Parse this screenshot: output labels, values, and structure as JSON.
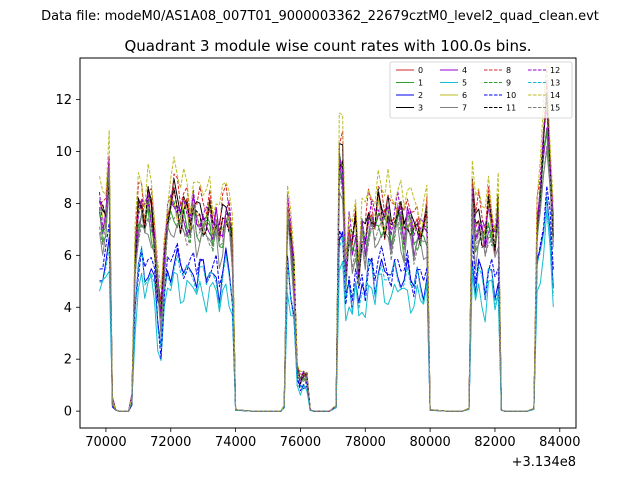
{
  "chart_data": {
    "type": "line",
    "suptitle": "Data file: modeM0/AS1A08_007T01_9000003362_22679cztM0_level2_quad_clean.evt",
    "title": "Quadrant 3 module wise count rates with 100.0s bins.",
    "xlabel": "",
    "ylabel": "",
    "x_offset_label": "+3.134e8",
    "xlim": [
      69200,
      84500
    ],
    "ylim": [
      -0.65,
      13.6
    ],
    "xticks": [
      70000,
      72000,
      74000,
      76000,
      78000,
      80000,
      82000,
      84000
    ],
    "xtick_labels": [
      "70000",
      "72000",
      "74000",
      "76000",
      "78000",
      "80000",
      "82000",
      "84000"
    ],
    "yticks": [
      0,
      2,
      4,
      6,
      8,
      10,
      12
    ],
    "ytick_labels": [
      "0",
      "2",
      "4",
      "6",
      "8",
      "10",
      "12"
    ],
    "legend_position": "top-right",
    "legend_columns": 4,
    "series": [
      {
        "name": "0",
        "color": "#d62728",
        "dash": "solid",
        "scale": 1.0,
        "cap": 7.8
      },
      {
        "name": "1",
        "color": "#2ca02c",
        "dash": "solid",
        "scale": 0.95,
        "cap": 7.3
      },
      {
        "name": "2",
        "color": "#0000ee",
        "dash": "solid",
        "scale": 0.72,
        "cap": 5.6
      },
      {
        "name": "3",
        "color": "#000000",
        "dash": "solid",
        "scale": 1.03,
        "cap": 8.0
      },
      {
        "name": "4",
        "color": "#9400d3",
        "dash": "solid",
        "scale": 0.98,
        "cap": 7.6
      },
      {
        "name": "5",
        "color": "#17becf",
        "dash": "solid",
        "scale": 0.62,
        "cap": 5.0
      },
      {
        "name": "6",
        "color": "#bcbd22",
        "dash": "solid",
        "scale": 1.0,
        "cap": 7.4
      },
      {
        "name": "7",
        "color": "#7f7f7f",
        "dash": "solid",
        "scale": 0.9,
        "cap": 7.0
      },
      {
        "name": "8",
        "color": "#d62728",
        "dash": "dashed",
        "scale": 1.08,
        "cap": 8.4
      },
      {
        "name": "9",
        "color": "#2ca02c",
        "dash": "dashed",
        "scale": 0.97,
        "cap": 7.5
      },
      {
        "name": "10",
        "color": "#0000ee",
        "dash": "dashed",
        "scale": 0.75,
        "cap": 5.8
      },
      {
        "name": "11",
        "color": "#000000",
        "dash": "dashed",
        "scale": 1.0,
        "cap": 7.7
      },
      {
        "name": "12",
        "color": "#9400d3",
        "dash": "dashed",
        "scale": 1.02,
        "cap": 7.9
      },
      {
        "name": "13",
        "color": "#17becf",
        "dash": "dashed",
        "scale": 0.7,
        "cap": 5.4
      },
      {
        "name": "14",
        "color": "#bcbd22",
        "dash": "dashed",
        "scale": 1.15,
        "cap": 9.0
      },
      {
        "name": "15",
        "color": "#7f7f7f",
        "dash": "dashed",
        "scale": 0.93,
        "cap": 7.2
      }
    ],
    "base_profile": {
      "x": [
        69800,
        69900,
        70000,
        70100,
        70200,
        70300,
        70400,
        70500,
        70600,
        70700,
        70800,
        70900,
        71000,
        71100,
        71200,
        71300,
        71400,
        71500,
        71600,
        71700,
        71800,
        71900,
        72000,
        72100,
        72200,
        72300,
        72400,
        72500,
        72600,
        72700,
        72800,
        72900,
        73000,
        73100,
        73200,
        73300,
        73400,
        73500,
        73600,
        73700,
        73800,
        73900,
        74000,
        74500,
        75000,
        75400,
        75500,
        75600,
        75700,
        75800,
        75900,
        76000,
        76100,
        76200,
        76300,
        76400,
        76500,
        76900,
        77100,
        77200,
        77300,
        77400,
        77500,
        77600,
        77700,
        77800,
        77900,
        78000,
        78100,
        78200,
        78300,
        78400,
        78500,
        78600,
        78700,
        78800,
        78900,
        79000,
        79100,
        79200,
        79300,
        79400,
        79500,
        79600,
        79700,
        79800,
        79900,
        80000,
        80500,
        81000,
        81100,
        81200,
        81300,
        81400,
        81500,
        81600,
        81700,
        81800,
        81900,
        82000,
        82100,
        82200,
        82300,
        82400,
        82500,
        82600,
        83000,
        83100,
        83200,
        83300,
        83400,
        83500,
        83600,
        83700,
        83800
      ],
      "y": [
        7.8,
        7.3,
        7.6,
        9.4,
        0.4,
        0.05,
        0.0,
        0.0,
        0.0,
        0.0,
        0.5,
        5.8,
        7.6,
        8.0,
        7.2,
        8.1,
        7.6,
        6.6,
        4.8,
        3.6,
        5.8,
        7.4,
        7.8,
        8.2,
        8.0,
        7.5,
        7.7,
        7.6,
        7.2,
        7.9,
        7.3,
        7.5,
        7.4,
        7.2,
        7.6,
        7.0,
        7.4,
        6.6,
        7.2,
        7.8,
        7.4,
        6.3,
        0.05,
        0.0,
        0.0,
        0.0,
        0.2,
        7.8,
        6.6,
        5.2,
        1.6,
        1.2,
        1.4,
        1.3,
        0.05,
        0.0,
        0.0,
        0.0,
        0.2,
        9.6,
        9.4,
        5.3,
        6.9,
        6.2,
        7.1,
        5.4,
        7.0,
        6.4,
        7.4,
        7.6,
        7.0,
        7.9,
        7.7,
        7.3,
        7.6,
        6.9,
        7.4,
        7.7,
        7.5,
        6.8,
        7.6,
        7.2,
        6.7,
        7.1,
        6.8,
        6.9,
        7.3,
        0.05,
        0.0,
        0.0,
        0.05,
        0.1,
        8.8,
        6.8,
        7.4,
        7.0,
        6.5,
        7.7,
        7.2,
        6.4,
        7.6,
        0.05,
        0.0,
        0.0,
        0.0,
        0.0,
        0.0,
        0.05,
        0.1,
        7.2,
        8.6,
        10.2,
        11.6,
        9.4,
        7.0
      ]
    }
  }
}
